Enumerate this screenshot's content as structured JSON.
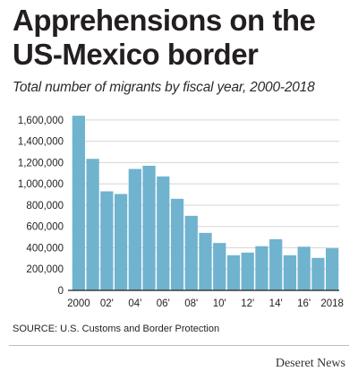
{
  "header": {
    "title": "Apprehensions on the US-Mexico border",
    "subtitle": "Total number of migrants by fiscal year, 2000-2018"
  },
  "footer": {
    "source": "SOURCE: U.S. Customs and Border Protection",
    "brand": "Deseret News"
  },
  "colors": {
    "bar": "#6fb3cf",
    "grid": "#d7d7d7",
    "axis": "#231f20"
  },
  "chart_data": {
    "type": "bar",
    "title": "Apprehensions on the US-Mexico border",
    "subtitle": "Total number of migrants by fiscal year, 2000-2018",
    "xlabel": "",
    "ylabel": "",
    "ylim": [
      0,
      1700000
    ],
    "grid": true,
    "categories": [
      "2000",
      "2001",
      "2002",
      "2003",
      "2004",
      "2005",
      "2006",
      "2007",
      "2008",
      "2009",
      "2010",
      "2011",
      "2012",
      "2013",
      "2014",
      "2015",
      "2016",
      "2017",
      "2018"
    ],
    "x_tick_labels": [
      "2000",
      "02'",
      "04'",
      "06'",
      "08'",
      "10'",
      "12'",
      "14'",
      "16'",
      "2018"
    ],
    "x_tick_indices": [
      0,
      2,
      4,
      6,
      8,
      10,
      12,
      14,
      16,
      18
    ],
    "y_ticks": [
      0,
      200000,
      400000,
      600000,
      800000,
      1000000,
      1200000,
      1400000,
      1600000
    ],
    "y_tick_labels": [
      "0",
      "200,000",
      "400,000",
      "600,000",
      "800,000",
      "1,000,000",
      "1,200,000",
      "1,400,000",
      "1,600,000"
    ],
    "values": [
      1640000,
      1235000,
      930000,
      905000,
      1140000,
      1170000,
      1070000,
      860000,
      700000,
      540000,
      445000,
      330000,
      355000,
      415000,
      480000,
      330000,
      410000,
      305000,
      395000
    ]
  }
}
